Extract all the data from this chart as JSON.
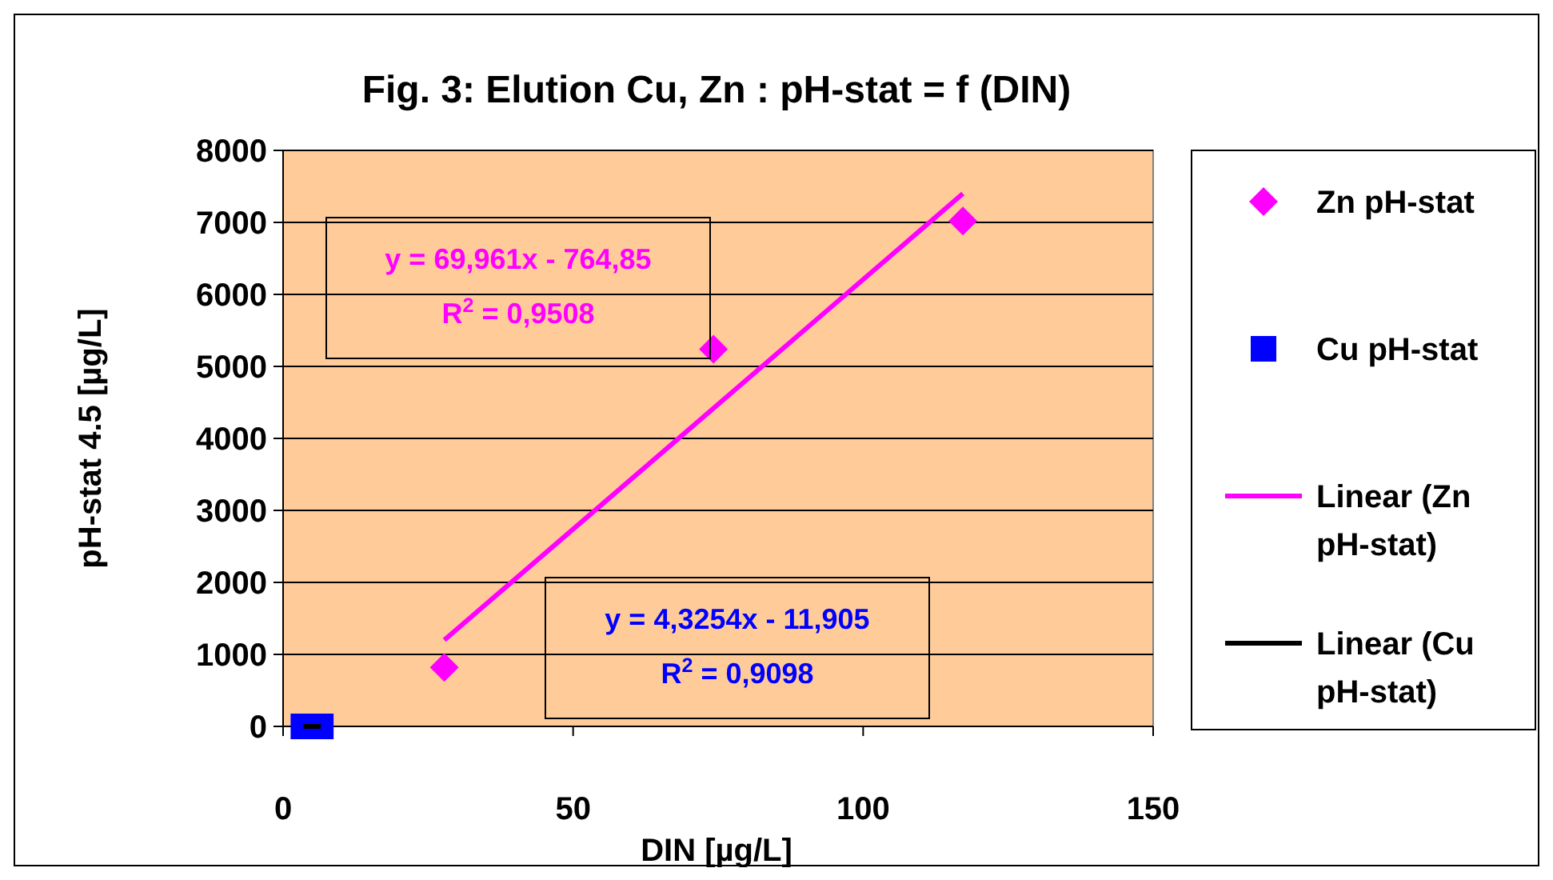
{
  "chart_data": {
    "type": "scatter",
    "title": "Fig. 3: Elution Cu, Zn : pH-stat = f (DIN)",
    "xlabel": "DIN [µg/L]",
    "ylabel": "pH-stat 4.5 [µg/L]",
    "xlim": [
      0,
      150
    ],
    "xticks": [
      0,
      50,
      100,
      150
    ],
    "ylim": [
      0,
      8000
    ],
    "yticks": [
      0,
      1000,
      2000,
      3000,
      4000,
      5000,
      6000,
      7000,
      8000
    ],
    "grid": "y",
    "legend": "right",
    "series": [
      {
        "name": "Zn pH-stat",
        "marker": "diamond",
        "color": "#ff00ff",
        "x": [
          27.8,
          74.2,
          117.2
        ],
        "values": [
          820,
          5240,
          7020
        ]
      },
      {
        "name": "Cu pH-stat",
        "marker": "square",
        "color": "#0000ff",
        "x": [
          3.5,
          6.5
        ],
        "values": [
          0,
          0
        ]
      },
      {
        "name": "Linear (Zn pH-stat)",
        "type": "line",
        "marker": "none",
        "color": "#ff00ff",
        "x": [
          27.8,
          117.2
        ],
        "values": [
          1200,
          7400
        ]
      },
      {
        "name": "Linear (Cu pH-stat)",
        "type": "line",
        "marker": "none",
        "color": "#000000",
        "x": [
          3.5,
          6.5
        ],
        "values": [
          0,
          0
        ]
      }
    ],
    "annotations": [
      "y = 69,961x - 764,85\nR$^{2}$ = 0,9508",
      "y = 4,3254x - 11,905\nR$^{2}$ = 0,9098"
    ]
  }
}
